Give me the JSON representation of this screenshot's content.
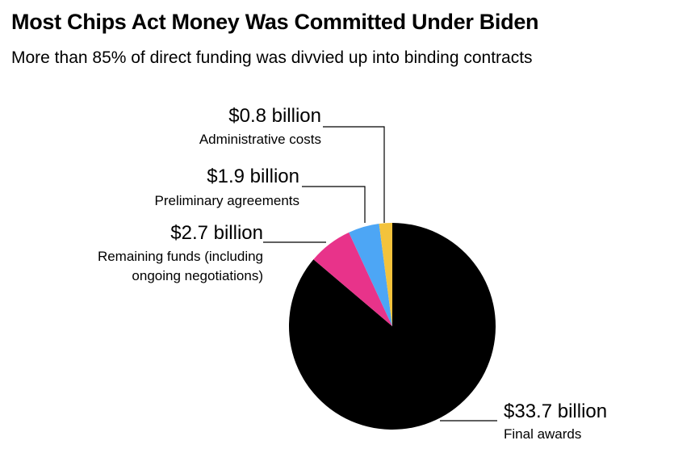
{
  "title": "Most Chips Act Money Was Committed Under Biden",
  "subtitle": "More than 85% of direct funding was divvied up into binding contracts",
  "chart_data": {
    "type": "pie",
    "title": "Most Chips Act Money Was Committed Under Biden",
    "subtitle": "More than 85% of direct funding was divvied up into binding contracts",
    "unit": "billion USD",
    "slices": [
      {
        "value": 33.7,
        "value_label": "$33.7 billion",
        "description": [
          "Final awards"
        ],
        "color": "#000000"
      },
      {
        "value": 2.7,
        "value_label": "$2.7 billion",
        "description": [
          "Remaining funds (including",
          "ongoing negotiations)"
        ],
        "color": "#e8338a"
      },
      {
        "value": 1.9,
        "value_label": "$1.9 billion",
        "description": [
          "Preliminary agreements"
        ],
        "color": "#4da6f5"
      },
      {
        "value": 0.8,
        "value_label": "$0.8 billion",
        "description": [
          "Administrative costs"
        ],
        "color": "#f3c33c"
      }
    ]
  }
}
